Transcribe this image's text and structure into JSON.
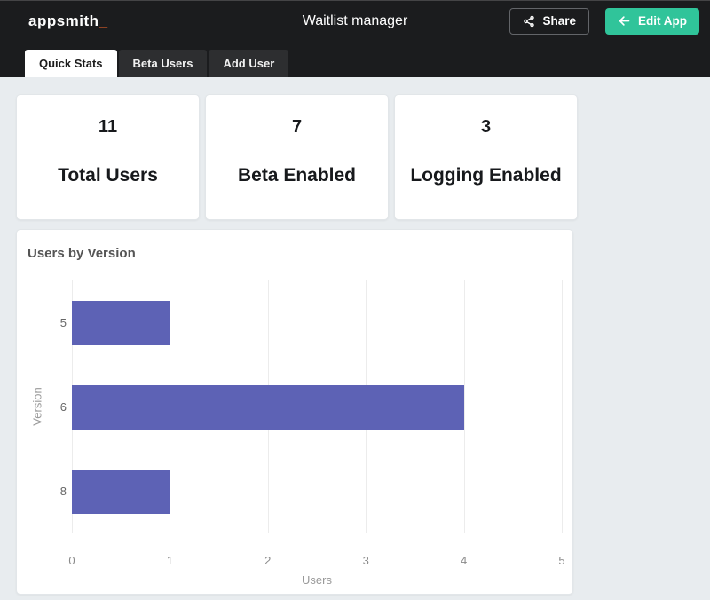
{
  "header": {
    "logo_text": "appsmith",
    "logo_cursor": "_",
    "title": "Waitlist manager",
    "share_label": "Share",
    "edit_label": "Edit App"
  },
  "tabs": [
    {
      "label": "Quick Stats",
      "active": true
    },
    {
      "label": "Beta Users",
      "active": false
    },
    {
      "label": "Add User",
      "active": false
    }
  ],
  "stats": [
    {
      "value": "11",
      "label": "Total Users"
    },
    {
      "value": "7",
      "label": "Beta Enabled"
    },
    {
      "value": "3",
      "label": "Logging Enabled"
    }
  ],
  "chart_data": {
    "type": "bar",
    "orientation": "horizontal",
    "title": "Users by Version",
    "categories": [
      "5",
      "6",
      "8"
    ],
    "values": [
      1,
      4,
      1
    ],
    "xlabel": "Users",
    "ylabel": "Version",
    "xticks": [
      0,
      1,
      2,
      3,
      4,
      5
    ],
    "xlim": [
      0,
      5
    ],
    "grid": true,
    "bar_color": "#5d62b5",
    "legend": "none"
  },
  "colors": {
    "header_bg": "#1b1c1e",
    "accent_green": "#30c49a",
    "logo_orange": "#f3652a",
    "bar_purple": "#5d62b5",
    "page_bg": "#e8ecef"
  },
  "icons": {
    "share": "share-icon",
    "back_arrow": "arrow-left-icon"
  }
}
